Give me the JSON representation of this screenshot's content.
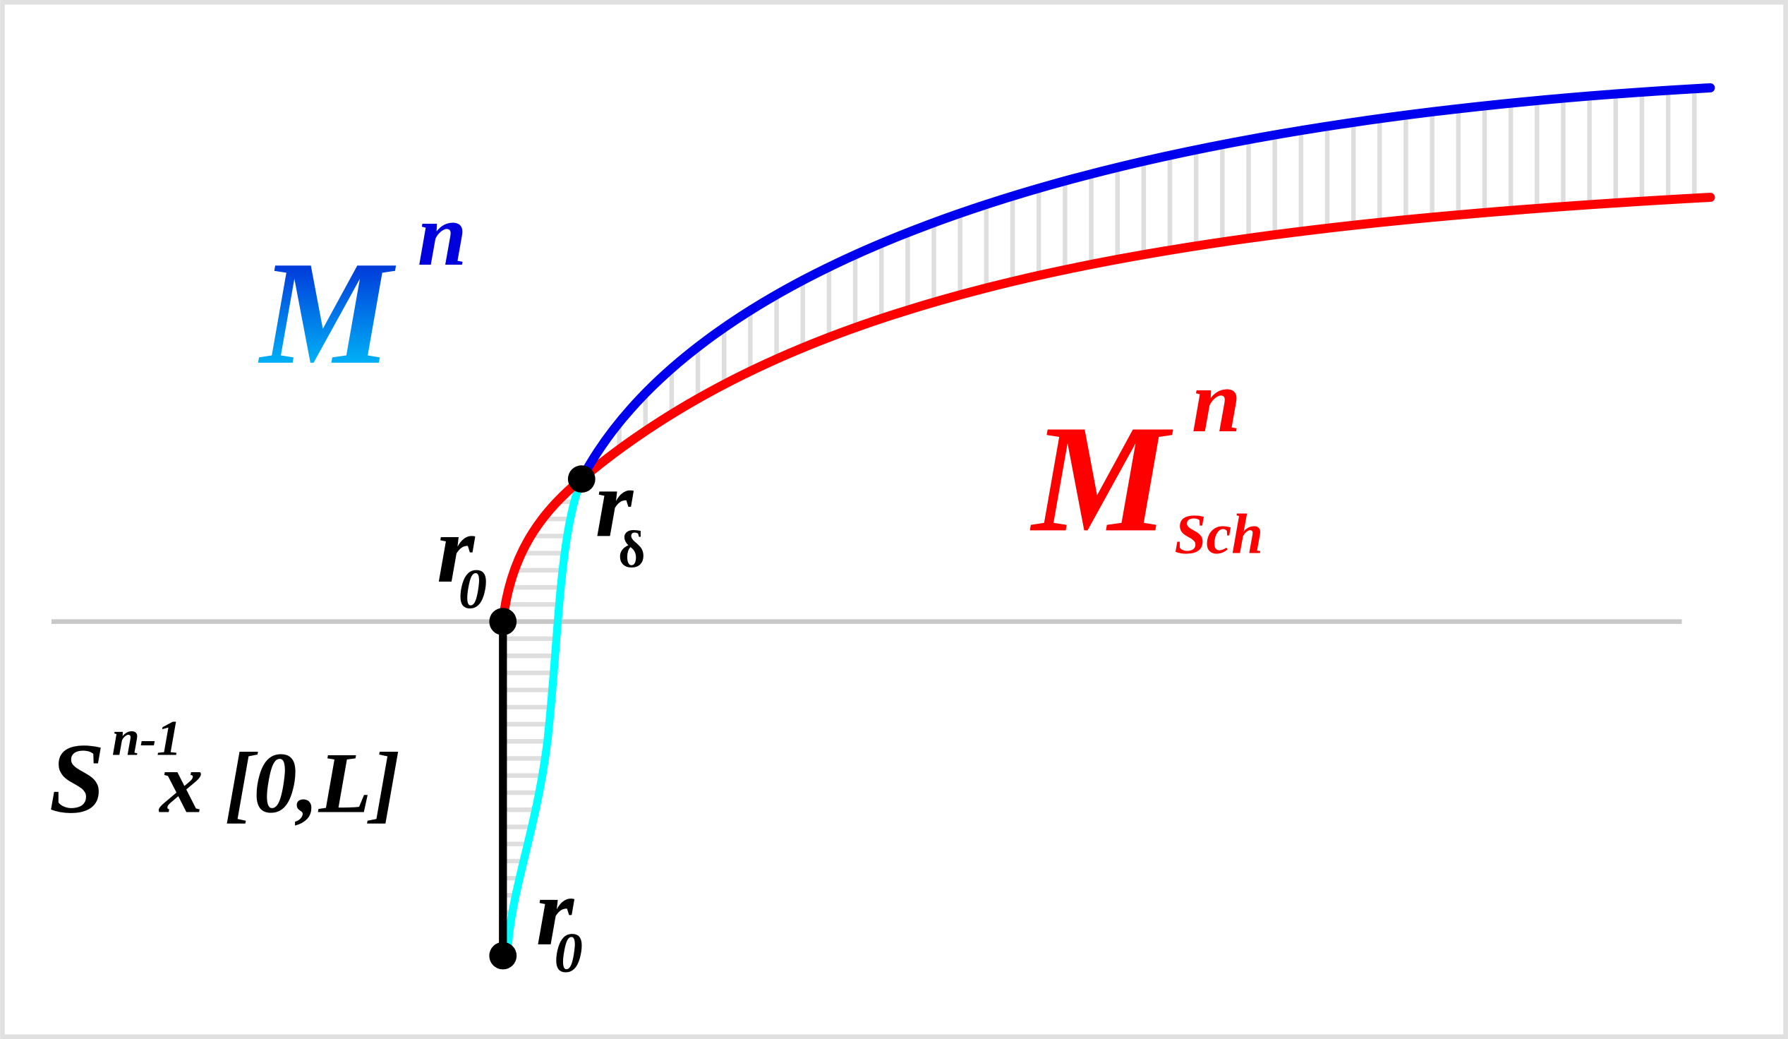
{
  "manifold": {
    "base": "M",
    "sup": "n"
  },
  "schwarzschild": {
    "base": "M",
    "sup": "n",
    "sub": "Sch"
  },
  "r0_top": {
    "base": "r",
    "sub": "0"
  },
  "r_delta": {
    "base": "r",
    "sub": "δ"
  },
  "r0_bottom": {
    "base": "r",
    "sub": "0"
  },
  "cylinder": {
    "base": "S",
    "sup": "n-1",
    "rest": "x [0,L]"
  }
}
